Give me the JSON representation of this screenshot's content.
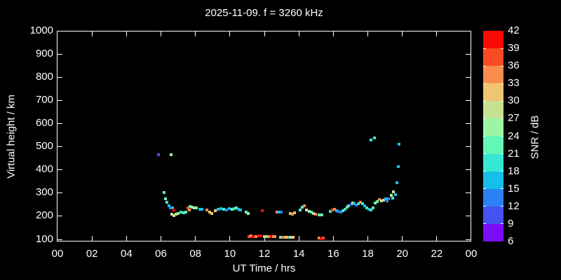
{
  "window": {
    "background": "#000000"
  },
  "colors": {
    "axis": "#ffffff",
    "text": "#ffffff",
    "background": "#000000"
  },
  "chart_data": {
    "type": "scatter",
    "title": "2025-11-09. f = 3260 kHz",
    "xlabel": "UT Time / hrs",
    "ylabel": "Virtual height / km",
    "x_tick_labels": [
      "00",
      "02",
      "04",
      "06",
      "08",
      "10",
      "12",
      "14",
      "16",
      "18",
      "20",
      "22",
      "00"
    ],
    "x_tick_hours": [
      0,
      2,
      4,
      6,
      8,
      10,
      12,
      14,
      16,
      18,
      20,
      22,
      24
    ],
    "x_range_hours": [
      0,
      24
    ],
    "y_tick_km": [
      100,
      200,
      300,
      400,
      500,
      600,
      700,
      800,
      900,
      1000
    ],
    "y_range_km": [
      89,
      1000
    ],
    "grid": false,
    "legend_position": "right-colorbar",
    "colorbar": {
      "label": "SNR / dB",
      "min": 6,
      "max": 42,
      "step": 3,
      "tick_labels_top_to_bottom": [
        "42",
        "39",
        "36",
        "33",
        "30",
        "27",
        "24",
        "21",
        "18",
        "15",
        "12",
        "9",
        "6"
      ],
      "colors_low_to_high": [
        "#7a0df8",
        "#4453f2",
        "#2b80f3",
        "#16bfe9",
        "#38e7d3",
        "#63f6b4",
        "#9cf5a2",
        "#c7e193",
        "#efc473",
        "#f98d4d",
        "#f94a23",
        "#fa0a05"
      ]
    },
    "point_format": [
      "ut_hour",
      "virtual_height_km",
      "snr_db"
    ],
    "points": [
      [
        5.86,
        466,
        10.5
      ],
      [
        6.59,
        466,
        25.5
      ],
      [
        6.17,
        301,
        22.5
      ],
      [
        6.26,
        273,
        22.5
      ],
      [
        6.36,
        258,
        19.5
      ],
      [
        6.45,
        243,
        16.5
      ],
      [
        6.56,
        234,
        13.5
      ],
      [
        6.66,
        234,
        16.5
      ],
      [
        6.76,
        227,
        40.5
      ],
      [
        6.62,
        207,
        28.5
      ],
      [
        6.74,
        201,
        28.5
      ],
      [
        6.86,
        207,
        28.5
      ],
      [
        6.98,
        210,
        25.5
      ],
      [
        7.15,
        216,
        19.5
      ],
      [
        7.31,
        213,
        22.5
      ],
      [
        7.43,
        216,
        22.5
      ],
      [
        7.55,
        234,
        37.5
      ],
      [
        7.63,
        225,
        34.5
      ],
      [
        7.69,
        240,
        22.5
      ],
      [
        7.81,
        237,
        25.5
      ],
      [
        7.93,
        234,
        25.5
      ],
      [
        8.05,
        234,
        25.5
      ],
      [
        8.25,
        228,
        16.5
      ],
      [
        8.38,
        228,
        16.5
      ],
      [
        8.66,
        225,
        34.5
      ],
      [
        8.82,
        216,
        31.5
      ],
      [
        8.95,
        210,
        31.5
      ],
      [
        9.14,
        222,
        31.5
      ],
      [
        9.3,
        228,
        16.5
      ],
      [
        9.46,
        232,
        16.5
      ],
      [
        9.63,
        228,
        19.5
      ],
      [
        9.79,
        225,
        13.5
      ],
      [
        9.95,
        232,
        16.5
      ],
      [
        10.11,
        228,
        22.5
      ],
      [
        10.24,
        232,
        19.5
      ],
      [
        10.36,
        234,
        22.5
      ],
      [
        10.48,
        228,
        16.5
      ],
      [
        10.6,
        225,
        16.5
      ],
      [
        10.93,
        216,
        22.5
      ],
      [
        11.05,
        210,
        25.5
      ],
      [
        11.88,
        222,
        40.5
      ],
      [
        12.72,
        216,
        34.5
      ],
      [
        12.84,
        216,
        16.5
      ],
      [
        12.96,
        216,
        13.5
      ],
      [
        13.49,
        210,
        31.5
      ],
      [
        13.61,
        207,
        34.5
      ],
      [
        13.73,
        213,
        31.5
      ],
      [
        14.06,
        225,
        22.5
      ],
      [
        14.18,
        237,
        22.5
      ],
      [
        14.3,
        243,
        34.5
      ],
      [
        14.46,
        225,
        28.5
      ],
      [
        14.59,
        219,
        25.5
      ],
      [
        14.71,
        216,
        22.5
      ],
      [
        14.83,
        210,
        25.5
      ],
      [
        14.95,
        207,
        34.5
      ],
      [
        15.16,
        204,
        22.5
      ],
      [
        15.32,
        204,
        22.5
      ],
      [
        15.81,
        219,
        19.5
      ],
      [
        15.93,
        225,
        37.5
      ],
      [
        16.05,
        228,
        34.5
      ],
      [
        16.17,
        222,
        16.5
      ],
      [
        16.29,
        219,
        13.5
      ],
      [
        16.42,
        216,
        13.5
      ],
      [
        16.54,
        222,
        19.5
      ],
      [
        16.66,
        228,
        19.5
      ],
      [
        16.78,
        237,
        22.5
      ],
      [
        16.9,
        243,
        19.5
      ],
      [
        17.03,
        249,
        10.5
      ],
      [
        17.13,
        255,
        25.5
      ],
      [
        17.21,
        252,
        16.5
      ],
      [
        17.34,
        246,
        13.5
      ],
      [
        17.46,
        252,
        19.5
      ],
      [
        17.58,
        258,
        34.5
      ],
      [
        17.7,
        252,
        19.5
      ],
      [
        17.83,
        243,
        16.5
      ],
      [
        17.95,
        234,
        19.5
      ],
      [
        18.07,
        228,
        16.5
      ],
      [
        18.19,
        225,
        19.5
      ],
      [
        18.31,
        234,
        22.5
      ],
      [
        18.44,
        255,
        22.5
      ],
      [
        18.56,
        261,
        22.5
      ],
      [
        18.68,
        270,
        34.5
      ],
      [
        18.8,
        264,
        28.5
      ],
      [
        18.92,
        267,
        28.5
      ],
      [
        19.05,
        273,
        16.5
      ],
      [
        19.1,
        266,
        13.5
      ],
      [
        19.22,
        275,
        13.5
      ],
      [
        19.35,
        288,
        28.5
      ],
      [
        19.43,
        278,
        19.5
      ],
      [
        19.47,
        303,
        28.5
      ],
      [
        19.59,
        291,
        16.5
      ],
      [
        19.67,
        345,
        16.5
      ],
      [
        19.75,
        412,
        16.5
      ],
      [
        19.79,
        511,
        16.5
      ],
      [
        18.18,
        528,
        19.5
      ],
      [
        18.39,
        536,
        19.5
      ],
      [
        11.09,
        110,
        37.5
      ],
      [
        11.21,
        113,
        34.5
      ],
      [
        11.33,
        110,
        40.5
      ],
      [
        11.5,
        110,
        34.5
      ],
      [
        11.66,
        113,
        40.5
      ],
      [
        11.78,
        113,
        40.5
      ],
      [
        12.02,
        110,
        31.5
      ],
      [
        12.15,
        110,
        22.5
      ],
      [
        12.27,
        110,
        34.5
      ],
      [
        12.39,
        110,
        40.5
      ],
      [
        12.51,
        110,
        34.5
      ],
      [
        12.63,
        110,
        34.5
      ],
      [
        12.92,
        107,
        22.5
      ],
      [
        13.04,
        107,
        34.5
      ],
      [
        13.16,
        107,
        34.5
      ],
      [
        13.28,
        107,
        31.5
      ],
      [
        13.41,
        107,
        19.5
      ],
      [
        13.53,
        107,
        31.5
      ],
      [
        13.65,
        107,
        31.5
      ],
      [
        15.16,
        104,
        34.5
      ],
      [
        15.28,
        101,
        40.5
      ],
      [
        15.4,
        104,
        37.5
      ]
    ]
  }
}
